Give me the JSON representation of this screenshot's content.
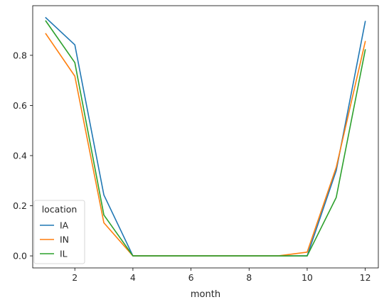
{
  "chart_data": {
    "type": "line",
    "xlabel": "month",
    "ylabel": "",
    "x": [
      1,
      2,
      3,
      4,
      5,
      6,
      7,
      8,
      9,
      10,
      11,
      12
    ],
    "xlim": [
      0.55,
      12.45
    ],
    "ylim": [
      -0.048,
      0.998
    ],
    "xticks": [
      2,
      4,
      6,
      8,
      10,
      12
    ],
    "yticks": [
      0.0,
      0.2,
      0.4,
      0.6,
      0.8
    ],
    "ytick_labels": [
      "0.0",
      "0.2",
      "0.4",
      "0.6",
      "0.8"
    ],
    "grid": false,
    "legend": {
      "title": "location",
      "placement": "lower-left"
    },
    "series": [
      {
        "name": "IA",
        "color": "#1f77b4",
        "values": [
          0.95,
          0.842,
          0.243,
          0.0,
          0.0,
          0.0,
          0.0,
          0.0,
          0.0,
          0.0,
          0.34,
          0.935
        ]
      },
      {
        "name": "IN",
        "color": "#ff7f0e",
        "values": [
          0.886,
          0.717,
          0.132,
          0.0,
          0.0,
          0.0,
          0.0,
          0.0,
          0.0,
          0.015,
          0.353,
          0.855
        ]
      },
      {
        "name": "IL",
        "color": "#2ca02c",
        "values": [
          0.937,
          0.771,
          0.163,
          0.0,
          0.0,
          0.0,
          0.0,
          0.0,
          0.0,
          0.0,
          0.233,
          0.822
        ]
      }
    ]
  }
}
